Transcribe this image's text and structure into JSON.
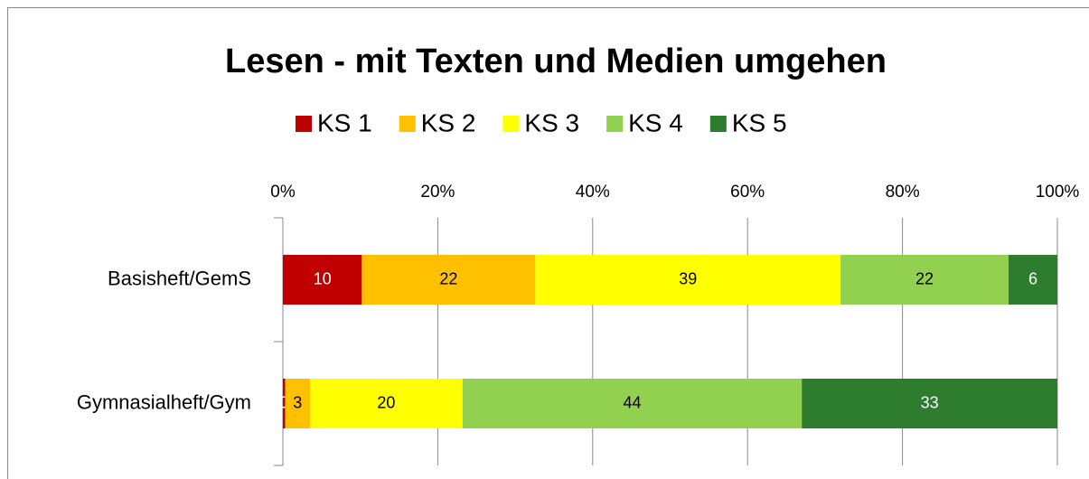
{
  "chart_data": {
    "type": "stacked_barh",
    "title": "Lesen - mit Texten und Medien umgehen",
    "categories": [
      "Basisheft/GemS",
      "Gymnasialheft/Gym"
    ],
    "series": [
      {
        "name": "KS 1",
        "color": "#c00000",
        "label_color": "#ffffff",
        "values": [
          10.2,
          0.3
        ],
        "value_labels": [
          "10",
          "0"
        ]
      },
      {
        "name": "KS 2",
        "color": "#ffc000",
        "label_color": "#000000",
        "values": [
          22.4,
          3.2
        ],
        "value_labels": [
          "22",
          "3"
        ]
      },
      {
        "name": "KS 3",
        "color": "#ffff00",
        "label_color": "#000000",
        "values": [
          39.4,
          19.7
        ],
        "value_labels": [
          "39",
          "20"
        ]
      },
      {
        "name": "KS 4",
        "color": "#92d050",
        "label_color": "#000000",
        "values": [
          21.7,
          43.8
        ],
        "value_labels": [
          "22",
          "44"
        ]
      },
      {
        "name": "KS 5",
        "color": "#2e7d2e",
        "label_color": "#ffffff",
        "values": [
          6.3,
          33.0
        ],
        "value_labels": [
          "6",
          "33"
        ]
      }
    ],
    "xlim": [
      0,
      100
    ],
    "xticks": [
      {
        "value": 0,
        "label": "0%"
      },
      {
        "value": 20,
        "label": "20%"
      },
      {
        "value": 40,
        "label": "40%"
      },
      {
        "value": 60,
        "label": "60%"
      },
      {
        "value": 80,
        "label": "80%"
      },
      {
        "value": 100,
        "label": "100%"
      }
    ],
    "grid": true,
    "legend": "top"
  }
}
